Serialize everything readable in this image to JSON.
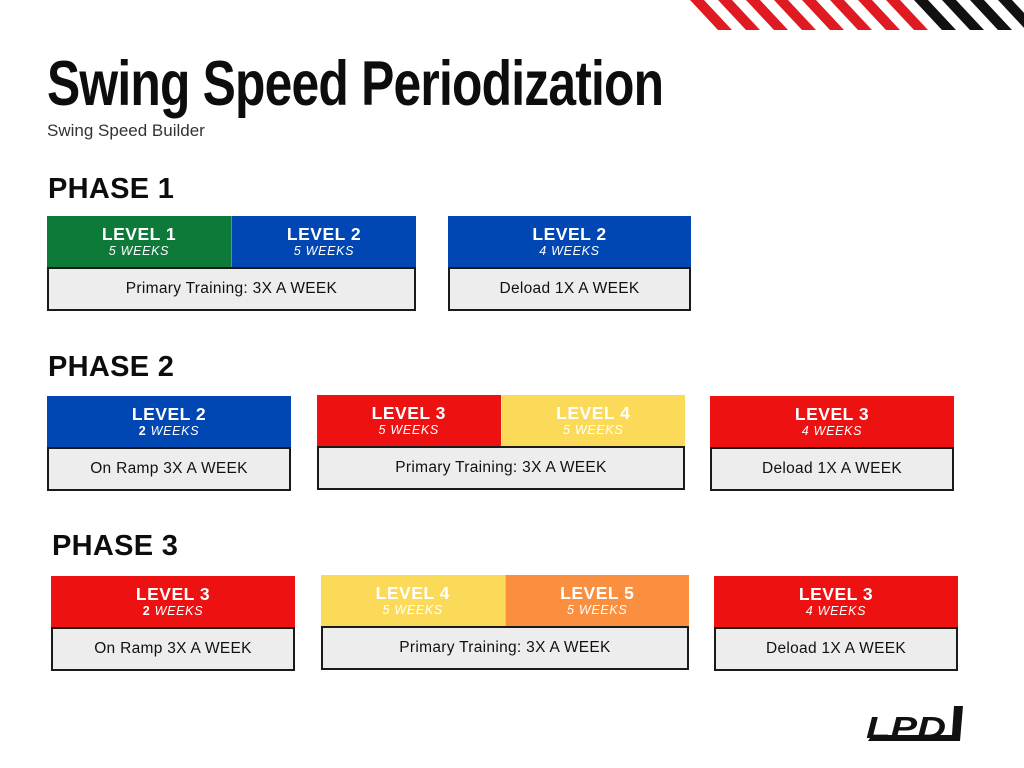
{
  "title": "Swing Speed Periodization",
  "subtitle": "Swing Speed Builder",
  "colors": {
    "level1": "#0e7a3a",
    "level2": "#0047b3",
    "level3": "#ee1111",
    "level4": "#fcda59",
    "level5": "#fb8f40",
    "stripe_red": "#e01a22",
    "stripe_black": "#111111"
  },
  "phases": [
    {
      "label": "PHASE 1",
      "groups": [
        {
          "levels": [
            {
              "name": "LEVEL 1",
              "weeks_num": "",
              "weeks_text": "5 WEEKS",
              "color": "#0e7a3a"
            },
            {
              "name": "LEVEL 2",
              "weeks_num": "",
              "weeks_text": "5 WEEKS",
              "color": "#0047b3"
            }
          ],
          "schedule": "Primary Training: 3X A WEEK"
        },
        {
          "levels": [
            {
              "name": "LEVEL 2",
              "weeks_num": "",
              "weeks_text": "4 WEEKS",
              "color": "#0047b3"
            }
          ],
          "schedule": "Deload 1X A WEEK"
        }
      ]
    },
    {
      "label": "PHASE 2",
      "groups": [
        {
          "levels": [
            {
              "name": "LEVEL 2",
              "weeks_num": "2",
              "weeks_text": " WEEKS",
              "color": "#0047b3"
            }
          ],
          "schedule": "On Ramp 3X A WEEK"
        },
        {
          "levels": [
            {
              "name": "LEVEL 3",
              "weeks_num": "",
              "weeks_text": "5 WEEKS",
              "color": "#ee1111"
            },
            {
              "name": "LEVEL 4",
              "weeks_num": "",
              "weeks_text": "5 WEEKS",
              "color": "#fcda59"
            }
          ],
          "schedule": "Primary Training: 3X A WEEK"
        },
        {
          "levels": [
            {
              "name": "LEVEL 3",
              "weeks_num": "",
              "weeks_text": "4 WEEKS",
              "color": "#ee1111"
            }
          ],
          "schedule": "Deload 1X A WEEK"
        }
      ]
    },
    {
      "label": "PHASE 3",
      "groups": [
        {
          "levels": [
            {
              "name": "LEVEL 3",
              "weeks_num": "2",
              "weeks_text": " WEEKS",
              "color": "#ee1111"
            }
          ],
          "schedule": "On Ramp 3X A WEEK"
        },
        {
          "levels": [
            {
              "name": "LEVEL 4",
              "weeks_num": "",
              "weeks_text": "5 WEEKS",
              "color": "#fcda59"
            },
            {
              "name": "LEVEL 5",
              "weeks_num": "",
              "weeks_text": "5 WEEKS",
              "color": "#fb8f40"
            }
          ],
          "schedule": "Primary Training: 3X A WEEK"
        },
        {
          "levels": [
            {
              "name": "LEVEL 3",
              "weeks_num": "",
              "weeks_text": "4 WEEKS",
              "color": "#ee1111"
            }
          ],
          "schedule": "Deload 1X A WEEK"
        }
      ]
    }
  ],
  "logo": {
    "text": "LPD",
    "icon": "lpd-logo"
  }
}
